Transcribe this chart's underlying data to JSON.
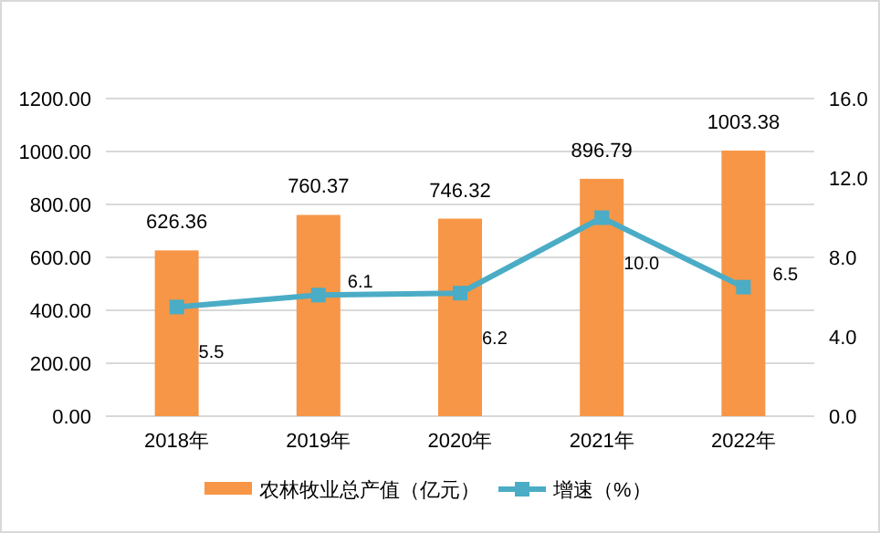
{
  "chart_data": {
    "type": "bar",
    "categories": [
      "2018年",
      "2019年",
      "2020年",
      "2021年",
      "2022年"
    ],
    "series": [
      {
        "name": "农林牧业总产值（亿元）",
        "color": "#f79646",
        "values": [
          626.36,
          760.37,
          746.32,
          896.79,
          1003.38
        ],
        "value_labels": [
          "626.36",
          "760.37",
          "746.32",
          "896.79",
          "1003.38"
        ]
      },
      {
        "name": "增速（%）",
        "type": "line",
        "axis": "y2",
        "color": "#4bacc6",
        "marker": "square",
        "values": [
          5.5,
          6.1,
          6.2,
          10.0,
          6.5
        ],
        "value_labels": [
          "5.5",
          "6.1",
          "6.2",
          "10.0",
          "6.5"
        ]
      }
    ],
    "ylim": [
      0,
      1200
    ],
    "yticks": [
      {
        "value": 0,
        "label": "0.00"
      },
      {
        "value": 200,
        "label": "200.00"
      },
      {
        "value": 400,
        "label": "400.00"
      },
      {
        "value": 600,
        "label": "600.00"
      },
      {
        "value": 800,
        "label": "800.00"
      },
      {
        "value": 1000,
        "label": "1000.00"
      },
      {
        "value": 1200,
        "label": "1200.00"
      }
    ],
    "y2lim": [
      0,
      16
    ],
    "y2ticks": [
      {
        "value": 0,
        "label": "0.0"
      },
      {
        "value": 4,
        "label": "4.0"
      },
      {
        "value": 8,
        "label": "8.0"
      },
      {
        "value": 12,
        "label": "12.0"
      },
      {
        "value": 16,
        "label": "16.0"
      }
    ],
    "grid": "y",
    "legend": "bottom"
  }
}
